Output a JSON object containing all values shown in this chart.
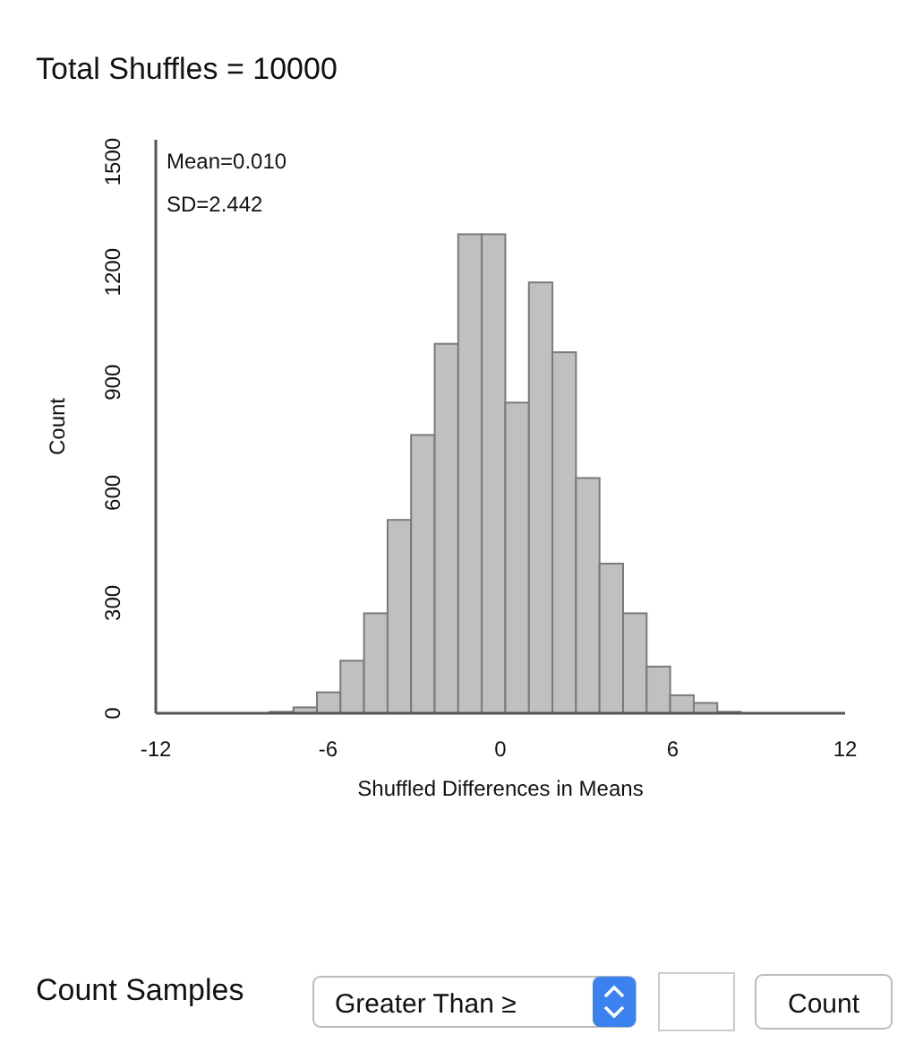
{
  "chart_data": {
    "type": "histogram",
    "title": "Total Shuffles = 10000",
    "xlabel": "Shuffled Differences in Means",
    "ylabel": "Count",
    "bins": [
      -8.03,
      -7.21,
      -6.39,
      -5.57,
      -4.75,
      -3.93,
      -3.11,
      -2.29,
      -1.47,
      -0.65,
      0.17,
      0.99,
      1.81,
      2.63,
      3.45,
      4.27,
      5.09,
      5.91,
      6.73,
      7.55,
      8.37
    ],
    "values": [
      4,
      16,
      57,
      143,
      272,
      526,
      757,
      1005,
      1303,
      1303,
      845,
      1172,
      982,
      640,
      407,
      272,
      127,
      49,
      28,
      4
    ],
    "color": "#c0c0c0",
    "xlim": [
      -12,
      12
    ],
    "xticks": [
      -12,
      -6,
      0,
      6,
      12
    ],
    "ylim": [
      0,
      1560
    ],
    "yticks": [
      0,
      300,
      600,
      900,
      1200,
      1500
    ],
    "annotations": [
      "Mean=0.010",
      "SD=2.442",
      "Count Samples",
      "Greater Than ≥",
      "Count"
    ]
  }
}
